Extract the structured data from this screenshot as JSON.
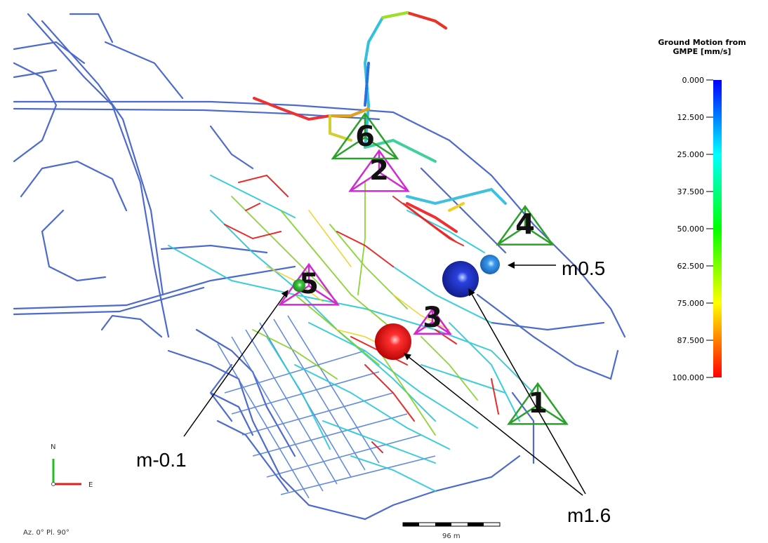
{
  "colorbar": {
    "title_line1": "Ground Motion from",
    "title_line2": "GMPE [mm/s]",
    "ticks": [
      "0.000",
      "12.500",
      "25.000",
      "37.500",
      "50.000",
      "62.500",
      "75.000",
      "87.500",
      "100.000"
    ],
    "colors": [
      "#0000ff",
      "#00ffff",
      "#00ff00",
      "#ffff00",
      "#ff0000"
    ]
  },
  "events": [
    {
      "label": "m0.5",
      "color": "#2a8cf0"
    },
    {
      "label": "m-0.1",
      "color": "#3ec83e"
    },
    {
      "label": "m1.6",
      "color": "#2030d8"
    },
    {
      "label": "m1.6",
      "color": "#e01818"
    }
  ],
  "event_labels": {
    "m05": "m0.5",
    "m01": "m-0.1",
    "m16": "m1.6"
  },
  "stations": [
    {
      "id": "1",
      "color": "#2ca02c"
    },
    {
      "id": "2",
      "color": "#d02ad0"
    },
    {
      "id": "3",
      "color": "#d02ad0"
    },
    {
      "id": "4",
      "color": "#2ca02c"
    },
    {
      "id": "5",
      "color": "#d02ad0"
    },
    {
      "id": "6",
      "color": "#2ca02c"
    }
  ],
  "compass": {
    "north": "N",
    "east": "E"
  },
  "view": {
    "orientation": "Az. 0° Pl. 90°"
  },
  "scale_bar": {
    "label": "96 m"
  }
}
